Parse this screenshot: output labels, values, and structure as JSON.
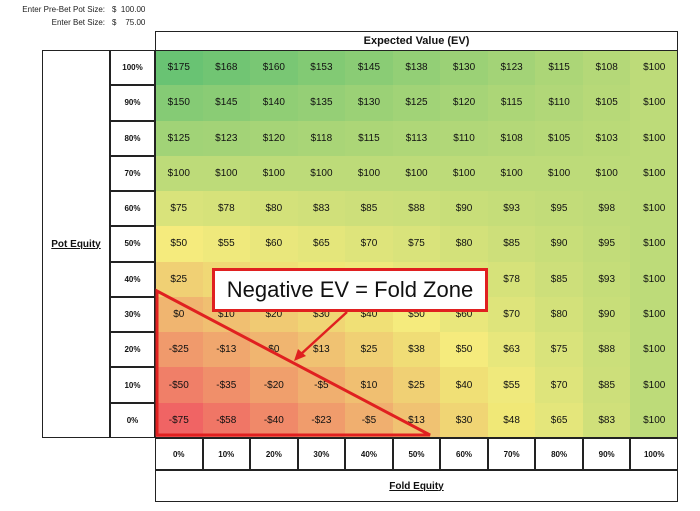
{
  "inputs": [
    {
      "label": "Enter Pre-Bet Pot Size:",
      "value": "$  100.00"
    },
    {
      "label": "Enter Bet Size:",
      "value": "$    75.00"
    }
  ],
  "table": {
    "title": "Expected Value (EV)",
    "row_axis": "Pot Equity",
    "column_axis": "Fold Equity",
    "columns": [
      "0%",
      "10%",
      "20%",
      "30%",
      "40%",
      "50%",
      "60%",
      "70%",
      "80%",
      "90%",
      "100%"
    ],
    "rows": [
      {
        "label": "100%",
        "cells": [
          "$175",
          "$168",
          "$160",
          "$153",
          "$145",
          "$138",
          "$130",
          "$123",
          "$115",
          "$108",
          "$100"
        ]
      },
      {
        "label": "90%",
        "cells": [
          "$150",
          "$145",
          "$140",
          "$135",
          "$130",
          "$125",
          "$120",
          "$115",
          "$110",
          "$105",
          "$100"
        ]
      },
      {
        "label": "80%",
        "cells": [
          "$125",
          "$123",
          "$120",
          "$118",
          "$115",
          "$113",
          "$110",
          "$108",
          "$105",
          "$103",
          "$100"
        ]
      },
      {
        "label": "70%",
        "cells": [
          "$100",
          "$100",
          "$100",
          "$100",
          "$100",
          "$100",
          "$100",
          "$100",
          "$100",
          "$100",
          "$100"
        ]
      },
      {
        "label": "60%",
        "cells": [
          "$75",
          "$78",
          "$80",
          "$83",
          "$85",
          "$88",
          "$90",
          "$93",
          "$95",
          "$98",
          "$100"
        ]
      },
      {
        "label": "50%",
        "cells": [
          "$50",
          "$55",
          "$60",
          "$65",
          "$70",
          "$75",
          "$80",
          "$85",
          "$90",
          "$95",
          "$100"
        ]
      },
      {
        "label": "40%",
        "cells": [
          "$25",
          null,
          null,
          null,
          null,
          null,
          null,
          "$78",
          "$85",
          "$93",
          "$100"
        ]
      },
      {
        "label": "30%",
        "cells": [
          "$0",
          "$10",
          "$20",
          "$30",
          "$40",
          "$50",
          "$60",
          "$70",
          "$80",
          "$90",
          "$100"
        ]
      },
      {
        "label": "20%",
        "cells": [
          "-$25",
          "-$13",
          "$0",
          "$13",
          "$25",
          "$38",
          "$50",
          "$63",
          "$75",
          "$88",
          "$100"
        ]
      },
      {
        "label": "10%",
        "cells": [
          "-$50",
          "-$35",
          "-$20",
          "-$5",
          "$10",
          "$25",
          "$40",
          "$55",
          "$70",
          "$85",
          "$100"
        ]
      },
      {
        "label": "0%",
        "cells": [
          "-$75",
          "-$58",
          "-$40",
          "-$23",
          "-$5",
          "$13",
          "$30",
          "$48",
          "$65",
          "$83",
          "$100"
        ]
      }
    ]
  },
  "callout": "Negative EV = Fold Zone"
}
